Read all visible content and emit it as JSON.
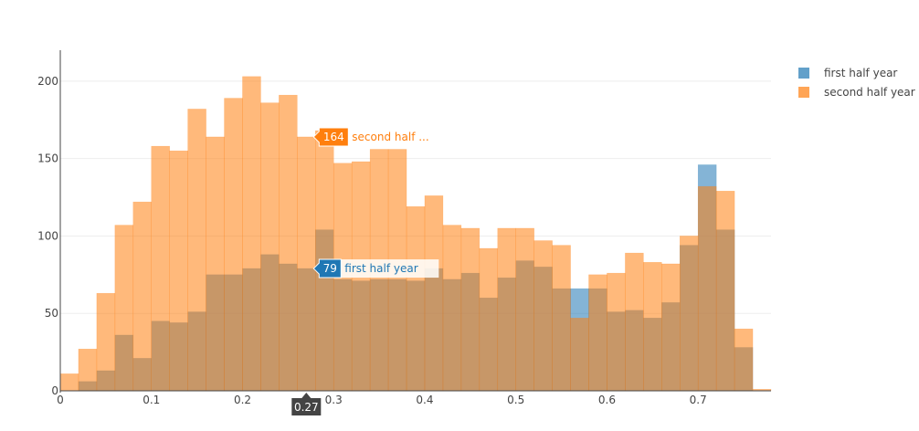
{
  "chart_data": {
    "type": "bar",
    "bar_mode": "overlay",
    "bin_width": 0.02,
    "x_range": [
      0,
      0.78
    ],
    "y_range": [
      0,
      220
    ],
    "x_ticks": [
      "0",
      "0.1",
      "0.2",
      "0.3",
      "0.4",
      "0.5",
      "0.6",
      "0.7"
    ],
    "y_ticks": [
      "0",
      "50",
      "100",
      "150",
      "200"
    ],
    "grid": "horizontal",
    "legend_position": "top-right",
    "bins_start": [
      0.0,
      0.02,
      0.04,
      0.06,
      0.08,
      0.1,
      0.12,
      0.14,
      0.16,
      0.18,
      0.2,
      0.22,
      0.24,
      0.26,
      0.28,
      0.3,
      0.32,
      0.34,
      0.36,
      0.38,
      0.4,
      0.42,
      0.44,
      0.46,
      0.48,
      0.5,
      0.52,
      0.54,
      0.56,
      0.58,
      0.6,
      0.62,
      0.64,
      0.66,
      0.68,
      0.7,
      0.72,
      0.74,
      0.76
    ],
    "series": [
      {
        "name": "first half year",
        "color": "#1f77b4",
        "values": [
          0,
          6,
          13,
          36,
          21,
          45,
          44,
          51,
          75,
          75,
          79,
          88,
          82,
          79,
          104,
          72,
          71,
          72,
          72,
          71,
          79,
          72,
          76,
          60,
          73,
          84,
          80,
          66,
          66,
          66,
          51,
          52,
          47,
          57,
          94,
          146,
          104,
          28,
          0
        ]
      },
      {
        "name": "second half year",
        "color": "#ff7f0e",
        "values": [
          11,
          27,
          63,
          107,
          122,
          158,
          155,
          182,
          164,
          189,
          203,
          186,
          191,
          164,
          168,
          147,
          148,
          156,
          156,
          119,
          126,
          107,
          105,
          92,
          105,
          105,
          97,
          94,
          47,
          75,
          76,
          89,
          83,
          82,
          100,
          132,
          129,
          40,
          1
        ]
      }
    ],
    "hover": {
      "x_label": "0.27",
      "labels": [
        {
          "series": "second half year",
          "value": "164",
          "text": "second half ...",
          "color": "#ff7f0e"
        },
        {
          "series": "first half year",
          "value": "79",
          "text": "first half year",
          "color": "#1f77b4"
        }
      ]
    }
  }
}
